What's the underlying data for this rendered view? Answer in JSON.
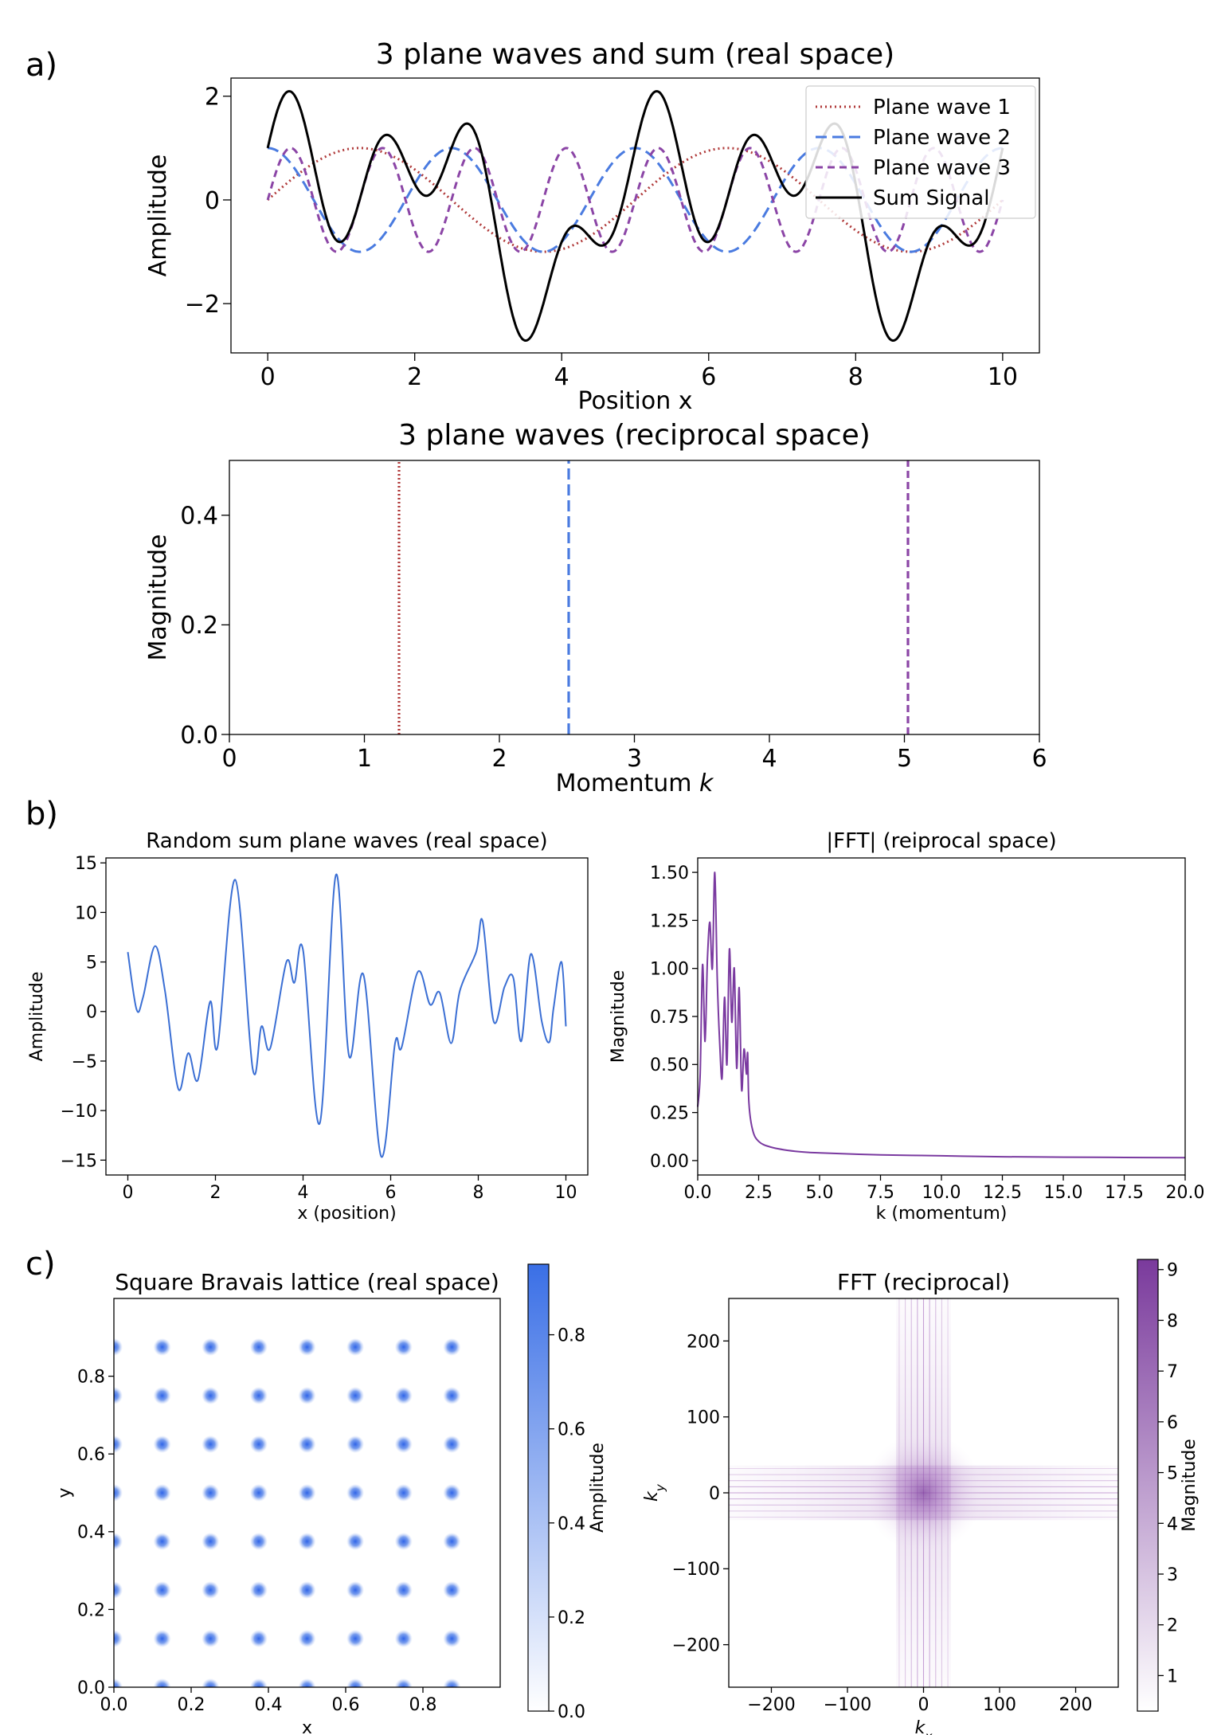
{
  "panel_labels": [
    "a)",
    "b)",
    "c)"
  ],
  "chart_data": [
    {
      "id": "a_top",
      "type": "line",
      "title": "3 plane waves and sum (real space)",
      "xlabel": "Position x",
      "ylabel": "Amplitude",
      "xlim": [
        -0.5,
        10.5
      ],
      "ylim": [
        -2.95,
        2.35
      ],
      "xticks": [
        0,
        2,
        4,
        6,
        8,
        10
      ],
      "xtick_labels": [
        "0",
        "2",
        "4",
        "6",
        "8",
        "10"
      ],
      "yticks": [
        -2,
        0,
        2
      ],
      "ytick_labels": [
        "−2",
        "0",
        "2"
      ],
      "x": {
        "start": 0,
        "stop": 10,
        "n": 600
      },
      "series": [
        {
          "name": "Plane wave 1",
          "func": "sin",
          "k": 1.2566,
          "color": "#b03a3a",
          "dash": "2,4",
          "width": 3
        },
        {
          "name": "Plane wave 2",
          "func": "cos",
          "k": 2.5133,
          "color": "#4a7be0",
          "dash": "14,7",
          "width": 3
        },
        {
          "name": "Plane wave 3",
          "func": "sin",
          "k": 5.0265,
          "color": "#8b45a6",
          "dash": "9,6",
          "width": 3
        },
        {
          "name": "Sum Signal",
          "func": "sum",
          "color": "#000000",
          "dash": "",
          "width": 3
        }
      ],
      "legend": "upper-right"
    },
    {
      "id": "a_bottom",
      "type": "line",
      "title": "3 plane waves (reciprocal space)",
      "xlabel": "Momentum k",
      "ylabel": "Magnitude",
      "xlim": [
        0,
        6
      ],
      "ylim": [
        0,
        0.5
      ],
      "xticks": [
        0,
        1,
        2,
        3,
        4,
        5,
        6
      ],
      "xtick_labels": [
        "0",
        "1",
        "2",
        "3",
        "4",
        "5",
        "6"
      ],
      "yticks": [
        0,
        0.2,
        0.4
      ],
      "ytick_labels": [
        "0.0",
        "0.2",
        "0.4"
      ],
      "lines": [
        {
          "x": 1.2566,
          "y": 0.5,
          "color": "#b03a3a",
          "dash": "2,3"
        },
        {
          "x": 2.5133,
          "y": 0.5,
          "color": "#4a7be0",
          "dash": "14,6"
        },
        {
          "x": 5.0265,
          "y": 0.5,
          "color": "#8b45a6",
          "dash": "9,5"
        }
      ]
    },
    {
      "id": "b_left",
      "type": "line",
      "title": "Random sum plane waves (real space)",
      "xlabel": "x (position)",
      "ylabel": "Amplitude",
      "xlim": [
        -0.5,
        10.5
      ],
      "ylim": [
        -16.5,
        15.5
      ],
      "xticks": [
        0,
        2,
        4,
        6,
        8,
        10
      ],
      "xtick_labels": [
        "0",
        "2",
        "4",
        "6",
        "8",
        "10"
      ],
      "yticks": [
        -15,
        -10,
        -5,
        0,
        5,
        10,
        15
      ],
      "ytick_labels": [
        "−15",
        "−10",
        "−5",
        "0",
        "5",
        "10",
        "15"
      ],
      "color": "#3b6fd4",
      "points": [
        [
          0,
          6
        ],
        [
          0.2,
          0.2
        ],
        [
          0.35,
          1.5
        ],
        [
          0.62,
          6.6
        ],
        [
          0.85,
          2
        ],
        [
          1.15,
          -7.8
        ],
        [
          1.38,
          -4.2
        ],
        [
          1.6,
          -6.9
        ],
        [
          1.88,
          1
        ],
        [
          2.05,
          -3.5
        ],
        [
          2.45,
          13.3
        ],
        [
          2.85,
          -5.8
        ],
        [
          3.05,
          -1.5
        ],
        [
          3.25,
          -3.7
        ],
        [
          3.62,
          5
        ],
        [
          3.8,
          2.9
        ],
        [
          4.0,
          6.2
        ],
        [
          4.38,
          -11.3
        ],
        [
          4.75,
          13.8
        ],
        [
          5.05,
          -4.5
        ],
        [
          5.38,
          3.7
        ],
        [
          5.78,
          -14.6
        ],
        [
          6.1,
          -3.2
        ],
        [
          6.25,
          -3.6
        ],
        [
          6.62,
          4
        ],
        [
          6.9,
          0.7
        ],
        [
          7.12,
          1.9
        ],
        [
          7.38,
          -3.2
        ],
        [
          7.58,
          2.1
        ],
        [
          7.95,
          6
        ],
        [
          8.1,
          9.1
        ],
        [
          8.35,
          -1
        ],
        [
          8.6,
          2.5
        ],
        [
          8.8,
          3.4
        ],
        [
          8.98,
          -3
        ],
        [
          9.2,
          5.8
        ],
        [
          9.45,
          -1
        ],
        [
          9.62,
          -3.1
        ],
        [
          9.72,
          0.4
        ],
        [
          9.9,
          5
        ],
        [
          10,
          -1.5
        ]
      ]
    },
    {
      "id": "b_right",
      "type": "line",
      "title": "|FFT| (reiprocal space)",
      "xlabel": "k (momentum)",
      "ylabel": "Magnitude",
      "xlim": [
        0,
        20
      ],
      "ylim": [
        -0.075,
        1.575
      ],
      "xticks": [
        0,
        2.5,
        5,
        7.5,
        10,
        12.5,
        15,
        17.5,
        20
      ],
      "xtick_labels": [
        "0.0",
        "2.5",
        "5.0",
        "7.5",
        "10.0",
        "12.5",
        "15.0",
        "17.5",
        "20.0"
      ],
      "yticks": [
        0,
        0.25,
        0.5,
        0.75,
        1,
        1.25,
        1.5
      ],
      "ytick_labels": [
        "0.00",
        "0.25",
        "0.50",
        "0.75",
        "1.00",
        "1.25",
        "1.50"
      ],
      "color": "#7a3aa0",
      "points": [
        [
          0,
          0.28
        ],
        [
          0.1,
          0.45
        ],
        [
          0.2,
          1.02
        ],
        [
          0.3,
          0.62
        ],
        [
          0.4,
          1.05
        ],
        [
          0.5,
          1.24
        ],
        [
          0.6,
          1.0
        ],
        [
          0.7,
          1.5
        ],
        [
          0.8,
          0.95
        ],
        [
          0.9,
          0.62
        ],
        [
          1.0,
          0.43
        ],
        [
          1.1,
          0.85
        ],
        [
          1.2,
          0.5
        ],
        [
          1.3,
          1.1
        ],
        [
          1.4,
          0.72
        ],
        [
          1.5,
          1.0
        ],
        [
          1.6,
          0.48
        ],
        [
          1.7,
          0.9
        ],
        [
          1.8,
          0.37
        ],
        [
          1.9,
          0.58
        ],
        [
          2.0,
          0.45
        ],
        [
          2.05,
          0.56
        ],
        [
          2.1,
          0.3
        ],
        [
          2.25,
          0.16
        ],
        [
          2.5,
          0.1
        ],
        [
          3,
          0.07
        ],
        [
          4,
          0.048
        ],
        [
          5,
          0.04
        ],
        [
          7.5,
          0.03
        ],
        [
          10,
          0.025
        ],
        [
          12.5,
          0.02
        ],
        [
          15,
          0.018
        ],
        [
          17.5,
          0.016
        ],
        [
          20,
          0.015
        ]
      ]
    },
    {
      "id": "c_left",
      "type": "heatmap",
      "title": "Square Bravais lattice (real space)",
      "xlabel": "x",
      "ylabel": "y",
      "xlim": [
        0,
        1
      ],
      "ylim": [
        0,
        1
      ],
      "xticks": [
        0,
        0.2,
        0.4,
        0.6,
        0.8
      ],
      "xtick_labels": [
        "0.0",
        "0.2",
        "0.4",
        "0.6",
        "0.8"
      ],
      "yticks": [
        0,
        0.2,
        0.4,
        0.6,
        0.8
      ],
      "ytick_labels": [
        "0.0",
        "0.2",
        "0.4",
        "0.6",
        "0.8"
      ],
      "lattice_spacing": 0.125,
      "lattice_n": 8,
      "colorbar": {
        "label": "Amplitude",
        "range": [
          0,
          0.95
        ],
        "ticks": [
          0,
          0.2,
          0.4,
          0.6,
          0.8
        ],
        "tick_labels": [
          "0.0",
          "0.2",
          "0.4",
          "0.6",
          "0.8"
        ],
        "color_low": "#ffffff",
        "color_high": "#3a6fe6"
      }
    },
    {
      "id": "c_right",
      "type": "heatmap",
      "title": "FFT (reciprocal)",
      "xlabel": "kx",
      "ylabel": "ky",
      "xlim": [
        -256,
        256
      ],
      "ylim": [
        -256,
        256
      ],
      "xticks": [
        -200,
        -100,
        0,
        100,
        200
      ],
      "xtick_labels": [
        "−200",
        "−100",
        "0",
        "100",
        "200"
      ],
      "yticks": [
        -200,
        -100,
        0,
        100,
        200
      ],
      "ytick_labels": [
        "−200",
        "−100",
        "0",
        "100",
        "200"
      ],
      "line_spacing": 8,
      "line_n": 4,
      "colorbar": {
        "label": "Magnitude",
        "range": [
          0.3,
          9.2
        ],
        "ticks": [
          1,
          2,
          3,
          4,
          5,
          6,
          7,
          8,
          9
        ],
        "tick_labels": [
          "1",
          "2",
          "3",
          "4",
          "5",
          "6",
          "7",
          "8",
          "9"
        ],
        "color_low": "#ffffff",
        "color_high": "#7a3a9c"
      }
    }
  ]
}
